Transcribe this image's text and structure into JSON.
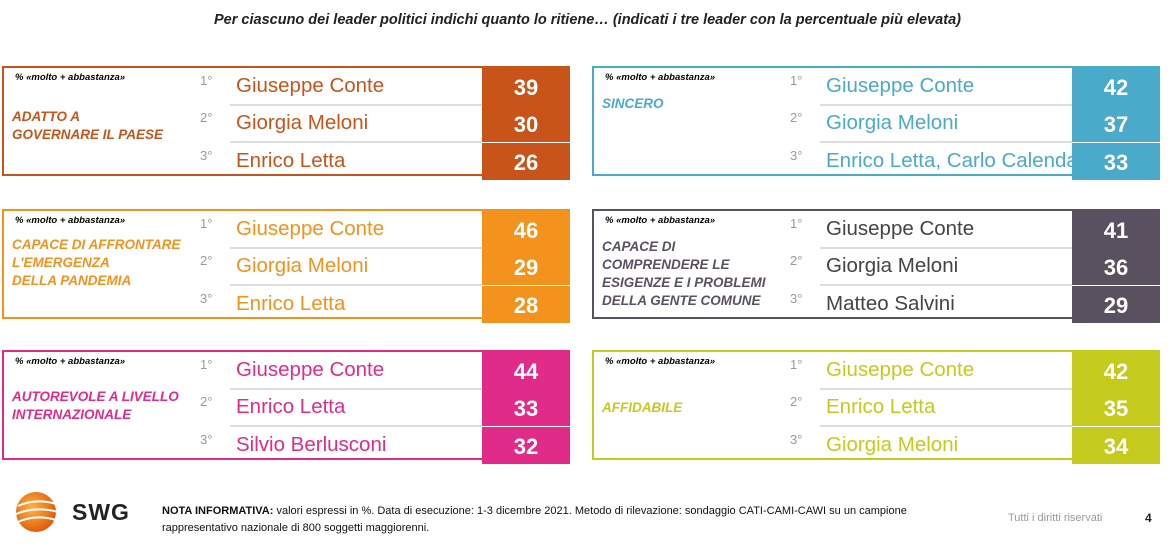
{
  "title": "Per ciascuno dei leader politici indichi quanto lo ritiene… (indicati i tre leader con la percentuale più elevata)",
  "chart_data": [
    {
      "type": "table",
      "note": "% «molto + abbastanza»",
      "category": "ADATTO A\nGOVERNARE IL PAESE",
      "color": "#c8541a",
      "rows": [
        {
          "rank": "1°",
          "name": "Giuseppe Conte",
          "value": 39
        },
        {
          "rank": "2°",
          "name": "Giorgia Meloni",
          "value": 30
        },
        {
          "rank": "3°",
          "name": "Enrico Letta",
          "value": 26
        }
      ]
    },
    {
      "type": "table",
      "note": "% «molto + abbastanza»",
      "category": "SINCERO",
      "color": "#4aaac9",
      "rows": [
        {
          "rank": "1°",
          "name": "Giuseppe Conte",
          "value": 42
        },
        {
          "rank": "2°",
          "name": "Giorgia Meloni",
          "value": 37
        },
        {
          "rank": "3°",
          "name": "Enrico Letta, Carlo Calenda",
          "value": 33
        }
      ]
    },
    {
      "type": "table",
      "note": "% «molto + abbastanza»",
      "category": "CAPACE DI AFFRONTARE\nL'EMERGENZA\nDELLA PANDEMIA",
      "color": "#f3921c",
      "rows": [
        {
          "rank": "1°",
          "name": "Giuseppe Conte",
          "value": 46
        },
        {
          "rank": "2°",
          "name": "Giorgia Meloni",
          "value": 29
        },
        {
          "rank": "3°",
          "name": "Enrico Letta",
          "value": 28
        }
      ]
    },
    {
      "type": "table",
      "note": "% «molto + abbastanza»",
      "category": "CAPACE DI\nCOMPRENDERE LE\nESIGENZE E I PROBLEMI\nDELLA GENTE COMUNE",
      "color": "#5a5160",
      "rows": [
        {
          "rank": "1°",
          "name": "Giuseppe Conte",
          "value": 41
        },
        {
          "rank": "2°",
          "name": "Giorgia Meloni",
          "value": 36
        },
        {
          "rank": "3°",
          "name": "Matteo Salvini",
          "value": 29
        }
      ]
    },
    {
      "type": "table",
      "note": "% «molto + abbastanza»",
      "category": "AUTOREVOLE A LIVELLO\nINTERNAZIONALE",
      "color": "#e02c88",
      "rows": [
        {
          "rank": "1°",
          "name": "Giuseppe Conte",
          "value": 44
        },
        {
          "rank": "2°",
          "name": "Enrico Letta",
          "value": 33
        },
        {
          "rank": "3°",
          "name": "Silvio Berlusconi",
          "value": 32
        }
      ]
    },
    {
      "type": "table",
      "note": "% «molto + abbastanza»",
      "category": "AFFIDABILE",
      "color": "#c5cb1c",
      "rows": [
        {
          "rank": "1°",
          "name": "Giuseppe Conte",
          "value": 42
        },
        {
          "rank": "2°",
          "name": "Enrico Letta",
          "value": 35
        },
        {
          "rank": "3°",
          "name": "Giorgia Meloni",
          "value": 34
        }
      ]
    }
  ],
  "footer": {
    "logo_text": "SWG",
    "note_label": "NOTA INFORMATIVA:",
    "note_text": " valori espressi in %. Data di esecuzione: 1-3 dicembre 2021. Metodo di rilevazione: sondaggio CATI-CAMI-CAWI su un campione rappresentativo nazionale di 800 soggetti maggiorenni.",
    "rights": "Tutti i diritti riservati",
    "page": "4"
  }
}
